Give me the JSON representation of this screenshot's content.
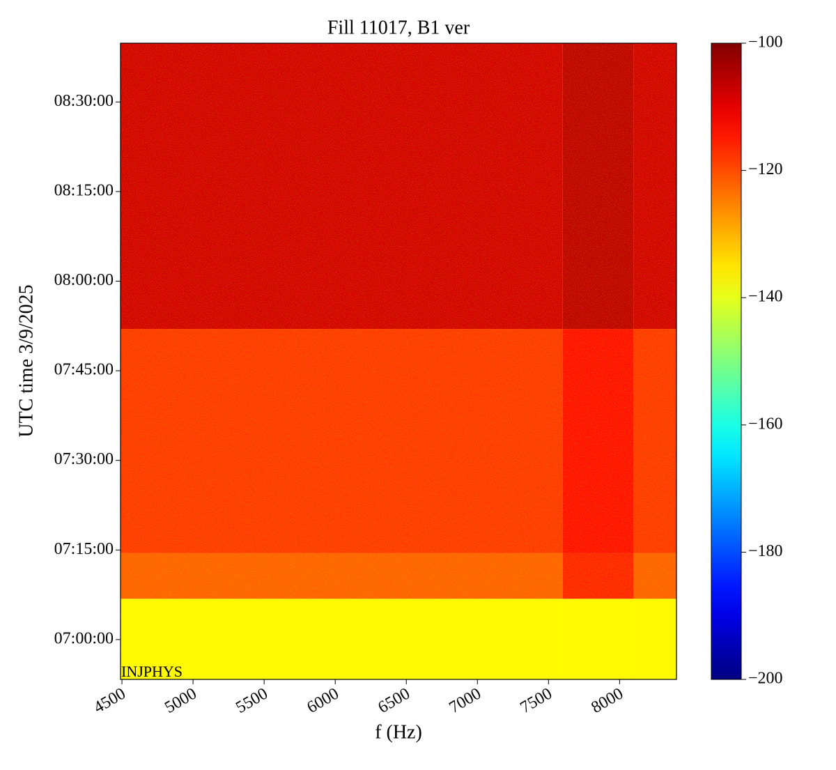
{
  "chart_data": {
    "type": "heatmap",
    "title": "Fill 11017, B1 ver",
    "xlabel": "f (Hz)",
    "ylabel": "UTC time 3/9/2025",
    "annotation": "INJPHYS",
    "x_edges": [
      4490,
      7600,
      8100,
      8400
    ],
    "y_edges": [
      "06:53:20",
      "07:06:50",
      "07:14:30",
      "07:52:00",
      "08:39:50"
    ],
    "z": [
      [
        -137,
        -137,
        -137
      ],
      [
        -122,
        -116,
        -122
      ],
      [
        -118,
        -114,
        -118
      ],
      [
        -108,
        -106,
        -108
      ]
    ],
    "colormap": "jet",
    "xlim": [
      4490,
      8400
    ],
    "xticks": [
      4500,
      5000,
      5500,
      6000,
      6500,
      7000,
      7500,
      8000
    ],
    "ylim": [
      "06:53:20",
      "08:39:50"
    ],
    "yticks": [
      "07:00:00",
      "07:15:00",
      "07:30:00",
      "07:45:00",
      "08:00:00",
      "08:15:00",
      "08:30:00"
    ],
    "clim": [
      -200,
      -100
    ],
    "cticks": [
      {
        "value": -100,
        "label": "−100"
      },
      {
        "value": -120,
        "label": "−120"
      },
      {
        "value": -140,
        "label": "−140"
      },
      {
        "value": -160,
        "label": "−160"
      },
      {
        "value": -180,
        "label": "−180"
      },
      {
        "value": -200,
        "label": "−200"
      }
    ]
  }
}
